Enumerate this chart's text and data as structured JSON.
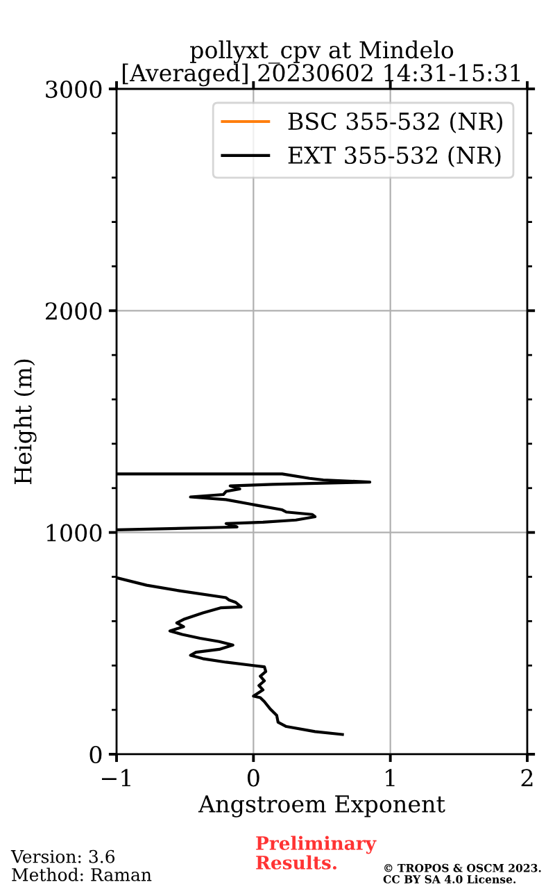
{
  "chart_data": {
    "type": "line",
    "title": "pollyxt_cpv at Mindelo\n[Averaged] 20230602 14:31-15:31",
    "xlabel": "Angstroem Exponent",
    "ylabel": "Height (m)",
    "xlim": [
      -1,
      2
    ],
    "xticks": [
      {
        "value": -1,
        "label": "−1"
      },
      0,
      1,
      2
    ],
    "ylim": [
      0,
      3000
    ],
    "yticks": [
      0,
      {
        "value": 200,
        "label": null
      },
      {
        "value": 400,
        "label": null
      },
      {
        "value": 600,
        "label": null
      },
      {
        "value": 800,
        "label": null
      },
      1000,
      {
        "value": 1200,
        "label": null
      },
      {
        "value": 1400,
        "label": null
      },
      {
        "value": 1600,
        "label": null
      },
      {
        "value": 1800,
        "label": null
      },
      2000,
      {
        "value": 2200,
        "label": null
      },
      {
        "value": 2400,
        "label": null
      },
      {
        "value": 2600,
        "label": null
      },
      {
        "value": 2800,
        "label": null
      },
      3000
    ],
    "grid": true,
    "legend": "top right",
    "line_style": "solid",
    "series": [
      {
        "name": "BSC 355-532 (NR)",
        "color": "#ff7f0e"
      },
      {
        "name": "EXT 355-532 (NR)",
        "color": "#000000",
        "x": [
          0.65,
          0.45,
          0.24,
          0.18,
          0.17,
          0.12,
          0.08,
          0.05,
          0.0,
          0.07,
          0.04,
          0.08,
          0.05,
          0.09,
          0.08,
          0.0,
          -0.2,
          -0.37,
          -0.46,
          -0.42,
          -0.25,
          -0.15,
          -0.25,
          -0.39,
          -0.52,
          -0.61,
          -0.51,
          -0.56,
          -0.51,
          -0.37,
          -0.24,
          -0.09,
          -0.13,
          -0.18,
          -0.2,
          -0.54,
          -0.78,
          -1.0,
          null,
          -1.0,
          -0.22,
          -0.12,
          -0.2,
          0.07,
          0.31,
          0.45,
          0.43,
          0.24,
          0.21,
          0.02,
          -0.03,
          -0.2,
          -0.46,
          -0.22,
          -0.2,
          -0.1,
          -0.17,
          0.14,
          0.85,
          0.51,
          0.41,
          0.21,
          -1.0
        ],
        "values": [
          89,
          102,
          125,
          144,
          175,
          206,
          237,
          255,
          262,
          290,
          310,
          331,
          352,
          373,
          394,
          400,
          415,
          431,
          446,
          460,
          473,
          492,
          508,
          523,
          540,
          556,
          575,
          592,
          608,
          637,
          660,
          664,
          685,
          696,
          706,
          737,
          762,
          796,
          null,
          1012,
          1023,
          1025,
          1040,
          1046,
          1056,
          1071,
          1081,
          1092,
          1102,
          1123,
          1129,
          1148,
          1160,
          1171,
          1185,
          1196,
          1210,
          1217,
          1227,
          1237,
          1244,
          1264,
          1264
        ]
      }
    ],
    "annotations": [
      "Version: 3.6\nMethod: Raman",
      "Preliminary\nResults.",
      "© TROPOS & OSCM 2023.\nCC BY SA 4.0 License."
    ]
  }
}
